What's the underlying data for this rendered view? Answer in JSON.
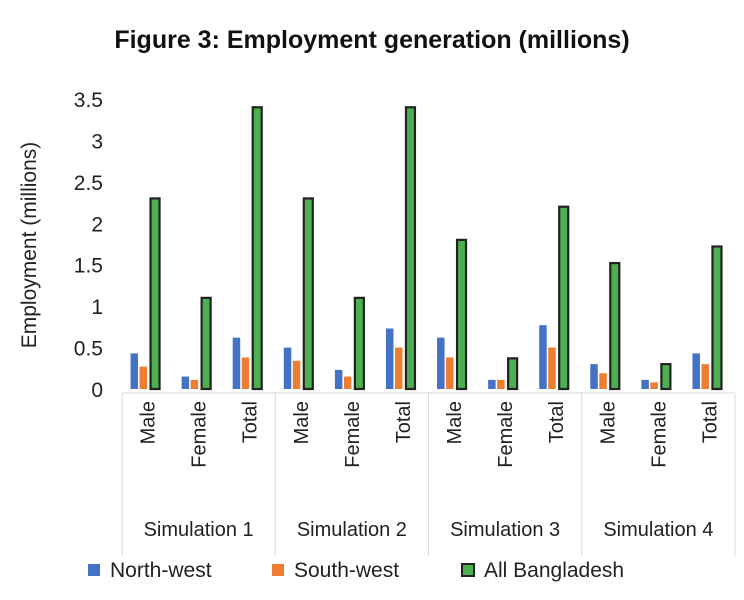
{
  "chart_data": {
    "type": "bar",
    "title": "Figure 3: Employment generation (millions)",
    "xlabel": "",
    "ylabel": "Employment (millions)",
    "ylim": [
      0,
      3.5
    ],
    "yticks": [
      "0",
      "0.5",
      "1",
      "1.5",
      "2",
      "2.5",
      "3",
      "3.5"
    ],
    "grid": false,
    "legend_position": "bottom",
    "groups": [
      "Simulation 1",
      "Simulation 2",
      "Simulation 3",
      "Simulation 4"
    ],
    "categories": [
      "Male",
      "Female",
      "Total",
      "Male",
      "Female",
      "Total",
      "Male",
      "Female",
      "Total",
      "Male",
      "Female",
      "Total"
    ],
    "series": [
      {
        "name": "North-west",
        "color": "#4472C4",
        "values": [
          0.43,
          0.15,
          0.62,
          0.5,
          0.23,
          0.73,
          0.62,
          0.11,
          0.77,
          0.3,
          0.11,
          0.43
        ]
      },
      {
        "name": "South-west",
        "color": "#ED7D31",
        "values": [
          0.27,
          0.11,
          0.38,
          0.34,
          0.15,
          0.5,
          0.38,
          0.11,
          0.5,
          0.19,
          0.08,
          0.3
        ]
      },
      {
        "name": "All Bangladesh",
        "color": "#4CAF50",
        "values": [
          2.3,
          1.1,
          3.4,
          2.3,
          1.1,
          3.4,
          1.8,
          0.37,
          2.2,
          1.52,
          0.3,
          1.72
        ]
      }
    ]
  }
}
